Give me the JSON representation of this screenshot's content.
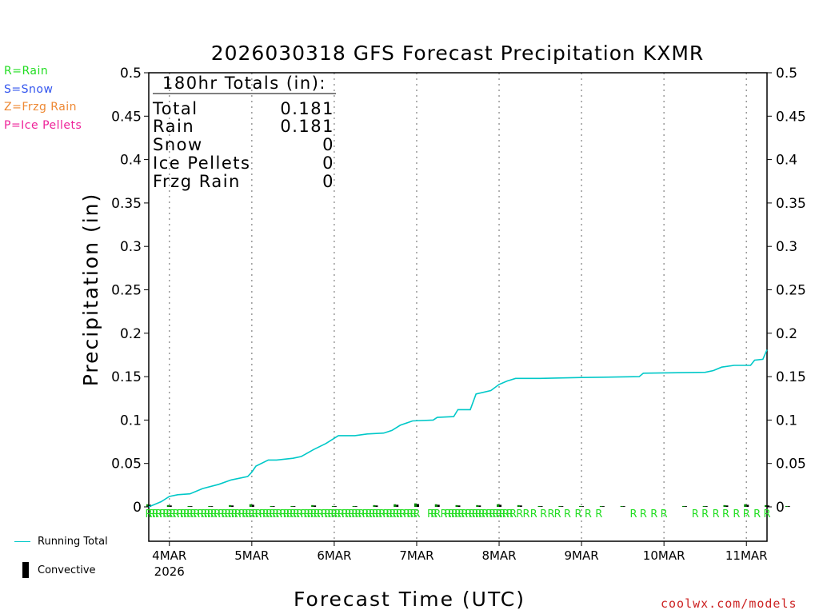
{
  "chart_data": {
    "type": "line",
    "title": "2026030318 GFS Forecast Precipitation KXMR",
    "xlabel": "Forecast Time (UTC)",
    "ylabel": "Precipitation (in)",
    "ylim": [
      0,
      0.5
    ],
    "yticks": [
      0,
      0.05,
      0.1,
      0.15,
      0.2,
      0.25,
      0.3,
      0.35,
      0.4,
      0.45,
      0.5
    ],
    "ytick_labels": [
      "0",
      "0.05",
      "0.1",
      "0.15",
      "0.2",
      "0.25",
      "0.3",
      "0.35",
      "0.4",
      "0.45",
      "0.5"
    ],
    "xlim_days": [
      -0.25,
      7.25
    ],
    "x_units": "days since 4MAR 00Z",
    "day_ticks": [
      {
        "day": 0,
        "label": "4MAR"
      },
      {
        "day": 1,
        "label": "5MAR"
      },
      {
        "day": 2,
        "label": "6MAR"
      },
      {
        "day": 3,
        "label": "7MAR"
      },
      {
        "day": 4,
        "label": "8MAR"
      },
      {
        "day": 5,
        "label": "9MAR"
      },
      {
        "day": 6,
        "label": "10MAR"
      },
      {
        "day": 7,
        "label": "11MAR"
      }
    ],
    "year_label": "2026",
    "totals": {
      "header": "180hr Totals (in):",
      "rows": [
        {
          "label": "Total",
          "value": "0.181"
        },
        {
          "label": "Rain",
          "value": "0.181"
        },
        {
          "label": "Snow",
          "value": "0"
        },
        {
          "label": "Ice Pellets",
          "value": "0"
        },
        {
          "label": "Frzg Rain",
          "value": "0"
        }
      ]
    },
    "series": [
      {
        "name": "Running Total",
        "color": "#00c8c8",
        "points": [
          [
            -0.25,
            0.0
          ],
          [
            -0.1,
            0.006
          ],
          [
            0.0,
            0.012
          ],
          [
            0.1,
            0.014
          ],
          [
            0.25,
            0.015
          ],
          [
            0.4,
            0.021
          ],
          [
            0.6,
            0.026
          ],
          [
            0.75,
            0.031
          ],
          [
            0.95,
            0.035
          ],
          [
            1.0,
            0.04
          ],
          [
            1.05,
            0.047
          ],
          [
            1.2,
            0.054
          ],
          [
            1.3,
            0.054
          ],
          [
            1.5,
            0.056
          ],
          [
            1.6,
            0.058
          ],
          [
            1.75,
            0.066
          ],
          [
            1.9,
            0.073
          ],
          [
            2.0,
            0.079
          ],
          [
            2.05,
            0.082
          ],
          [
            2.25,
            0.082
          ],
          [
            2.4,
            0.084
          ],
          [
            2.6,
            0.085
          ],
          [
            2.7,
            0.088
          ],
          [
            2.8,
            0.094
          ],
          [
            2.95,
            0.099
          ],
          [
            3.2,
            0.1
          ],
          [
            3.25,
            0.103
          ],
          [
            3.45,
            0.104
          ],
          [
            3.5,
            0.112
          ],
          [
            3.65,
            0.112
          ],
          [
            3.72,
            0.13
          ],
          [
            3.9,
            0.134
          ],
          [
            4.0,
            0.141
          ],
          [
            4.1,
            0.145
          ],
          [
            4.2,
            0.148
          ],
          [
            4.5,
            0.148
          ],
          [
            5.0,
            0.149
          ],
          [
            5.7,
            0.15
          ],
          [
            5.75,
            0.154
          ],
          [
            6.5,
            0.155
          ],
          [
            6.6,
            0.157
          ],
          [
            6.7,
            0.161
          ],
          [
            6.85,
            0.163
          ],
          [
            7.05,
            0.163
          ],
          [
            7.1,
            0.169
          ],
          [
            7.2,
            0.17
          ],
          [
            7.25,
            0.181
          ]
        ]
      },
      {
        "name": "Convective",
        "color": "#000000",
        "values_by_6hr": [
          0.003,
          0.002,
          0.001,
          0.001,
          0.002,
          0.003,
          0.001,
          0.001,
          0.002,
          0.001,
          0.001,
          0.002,
          0.003,
          0.004,
          0.003,
          0.002,
          0.002,
          0.003,
          0.002,
          0.001,
          0.001,
          0.001,
          0.001,
          0.001,
          0.0,
          0.0,
          0.001,
          0.001,
          0.002,
          0.003,
          0.002,
          0.001,
          0.0,
          0.001,
          0.001,
          0.002,
          0.003,
          0.006,
          0.009,
          0.004,
          0.002,
          0.003,
          0.002,
          0.001,
          0.0,
          0.0,
          0.0,
          0.0,
          0.0,
          0.0,
          0.0,
          0.0,
          0.0,
          0.0,
          0.0,
          0.0,
          0.0,
          0.003,
          0.0,
          0.0,
          0.0,
          0.0,
          0.0,
          0.001,
          0.0,
          0.0,
          0.001,
          0.002,
          0.0,
          0.003,
          0.005,
          0.011
        ]
      }
    ],
    "precip_type_markers": {
      "symbol": "R",
      "days": [
        -0.25,
        -0.21,
        -0.17,
        -0.13,
        -0.08,
        -0.04,
        0.0,
        0.04,
        0.08,
        0.13,
        0.17,
        0.21,
        0.25,
        0.29,
        0.33,
        0.38,
        0.42,
        0.46,
        0.5,
        0.54,
        0.58,
        0.63,
        0.67,
        0.71,
        0.75,
        0.79,
        0.83,
        0.88,
        0.92,
        0.96,
        1.0,
        1.04,
        1.08,
        1.13,
        1.17,
        1.21,
        1.25,
        1.29,
        1.33,
        1.38,
        1.42,
        1.46,
        1.5,
        1.54,
        1.58,
        1.63,
        1.67,
        1.71,
        1.75,
        1.79,
        1.83,
        1.88,
        1.92,
        1.96,
        2.0,
        2.04,
        2.08,
        2.13,
        2.17,
        2.21,
        2.25,
        2.29,
        2.33,
        2.38,
        2.42,
        2.46,
        2.5,
        2.54,
        2.58,
        2.63,
        2.67,
        2.71,
        2.75,
        2.79,
        2.83,
        2.88,
        2.92,
        2.96,
        3.0,
        3.17,
        3.21,
        3.25,
        3.33,
        3.38,
        3.42,
        3.46,
        3.5,
        3.54,
        3.58,
        3.63,
        3.67,
        3.71,
        3.75,
        3.79,
        3.83,
        3.88,
        3.92,
        3.96,
        4.0,
        4.04,
        4.08,
        4.13,
        4.17,
        4.25,
        4.33,
        4.42,
        4.54,
        4.63,
        4.71,
        4.83,
        4.96,
        5.08,
        5.21,
        5.63,
        5.75,
        5.88,
        6.0,
        6.38,
        6.5,
        6.63,
        6.75,
        6.88,
        7.0,
        7.13,
        7.25
      ]
    }
  },
  "legend": {
    "items": [
      {
        "text": "R=Rain",
        "color": "#22dd22"
      },
      {
        "text": "S=Snow",
        "color": "#3355ee"
      },
      {
        "text": "Z=Frzg Rain",
        "color": "#ee8833"
      },
      {
        "text": "P=Ice Pellets",
        "color": "#ee2299"
      }
    ],
    "running_total_label": "Running Total",
    "convective_label": "Convective"
  },
  "footer": {
    "credit": "coolwx.com/models"
  },
  "colors": {
    "running_total": "#00c8c8",
    "total_bar": "#008800",
    "convective_bar": "#000000",
    "rain_marker": "#22dd22",
    "credit": "#cc2222",
    "grid": "#999999"
  }
}
